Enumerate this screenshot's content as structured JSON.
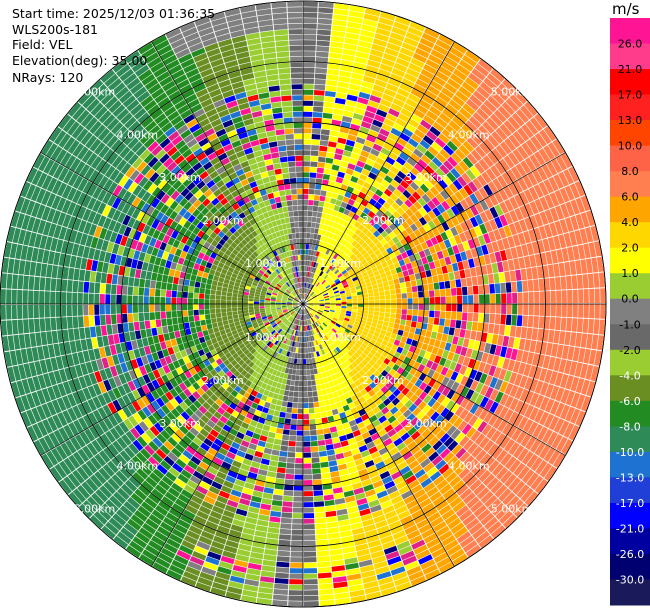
{
  "header": {
    "start_time": "Start time: 2025/12/03 01:36:35",
    "instrument": "WLS200s-181",
    "field": "Field: VEL",
    "elevation": "Elevation(deg): 35.00",
    "nrays": "NRays: 120"
  },
  "colorbar": {
    "unit": "m/s",
    "ticks": [
      "26.0",
      "21.0",
      "17.0",
      "13.0",
      "10.0",
      "8.0",
      "6.0",
      "4.0",
      "2.0",
      "1.0",
      "0.0",
      "-1.0",
      "-2.0",
      "-4.0",
      "-6.0",
      "-8.0",
      "-10.0",
      "-13.0",
      "-17.0",
      "-21.0",
      "-26.0",
      "-30.0"
    ],
    "colors": [
      "#ff1493",
      "#ff3c8c",
      "#ff0000",
      "#ff2020",
      "#ff4500",
      "#ff6347",
      "#ff7f50",
      "#ffa500",
      "#ffd700",
      "#ffff00",
      "#9acd32",
      "#808080",
      "#696969",
      "#9acd32",
      "#6b8e23",
      "#228b22",
      "#2e8b57",
      "#1e73d2",
      "#1f3fd6",
      "#0000ff",
      "#0000a0",
      "#000070",
      "#1a1a5a"
    ]
  },
  "chart_data": {
    "type": "ppi",
    "field": "VEL",
    "units": "m/s",
    "range_rings_km": [
      1.0,
      2.0,
      3.0,
      4.0,
      5.0
    ],
    "range_ring_labels": [
      "1.00km",
      "2.00km",
      "3.00km",
      "4.00km",
      "5.00km"
    ],
    "max_range_km": 5.0,
    "nrays": 120,
    "elevation_deg": 35.0,
    "pattern": "folded radial velocity; positive (yellow/orange) toward east, negative (green) toward west"
  }
}
